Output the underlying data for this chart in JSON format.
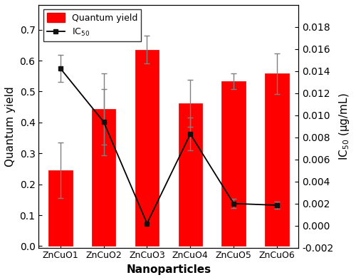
{
  "categories": [
    "ZnCuO1",
    "ZnCuO2",
    "ZnCuO3",
    "ZnCuO4",
    "ZnCuO5",
    "ZnCuO6"
  ],
  "bar_values": [
    0.245,
    0.443,
    0.635,
    0.462,
    0.534,
    0.558
  ],
  "bar_errors_up": [
    0.09,
    0.115,
    0.045,
    0.075,
    0.025,
    0.065
  ],
  "bar_errors_down": [
    0.09,
    0.115,
    0.045,
    0.075,
    0.025,
    0.065
  ],
  "bar_color": "#ff0000",
  "bar_edgecolor": "#dd0000",
  "ic50_values": [
    0.01425,
    0.0094,
    0.0002,
    0.0083,
    0.002,
    0.00185
  ],
  "ic50_errors": [
    0.0012,
    0.003,
    0.00015,
    0.0015,
    0.0004,
    0.0003
  ],
  "line_color": "#000000",
  "marker_color": "#111111",
  "xlabel": "Nanoparticles",
  "ylabel_left": "Quantum yield",
  "ylabel_right": "IC$_{50}$ (μg/mL)",
  "ylim_left": [
    -0.005,
    0.78
  ],
  "ylim_right": [
    -0.002,
    0.02
  ],
  "yticks_left": [
    0.0,
    0.1,
    0.2,
    0.3,
    0.4,
    0.5,
    0.6,
    0.7
  ],
  "yticks_right": [
    -0.002,
    0.0,
    0.002,
    0.004,
    0.006,
    0.008,
    0.01,
    0.012,
    0.014,
    0.016,
    0.018
  ],
  "legend_labels": [
    "Quantum yield",
    "IC$_{50}$"
  ],
  "figsize": [
    5.0,
    3.93
  ],
  "dpi": 100
}
